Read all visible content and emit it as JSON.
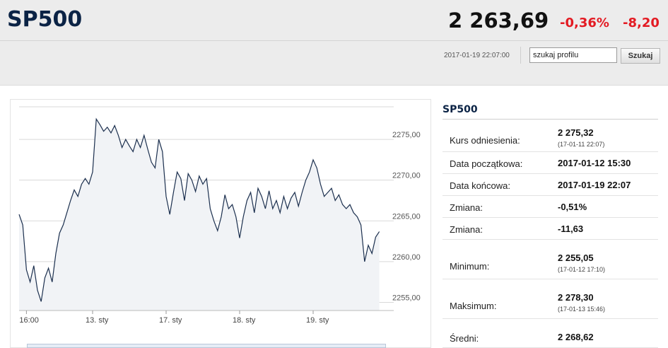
{
  "header": {
    "ticker": "SP500",
    "price": "2 263,69",
    "change_pct": "-0,36%",
    "change_abs": "-8,20",
    "timestamp": "2017-01-19 22:07:00",
    "search_value": "szukaj profilu",
    "search_button": "Szukaj"
  },
  "sidebar": {
    "title": "SP500",
    "stats": [
      {
        "label": "Kurs odniesienia:",
        "value": "2 275,32",
        "sub": "(17-01-11 22:07)"
      },
      {
        "label": "Data początkowa:",
        "value": "2017-01-12 15:30",
        "sub": ""
      },
      {
        "label": "Data końcowa:",
        "value": "2017-01-19 22:07",
        "sub": ""
      },
      {
        "label": "Zmiana:",
        "value": "-0,51%",
        "sub": ""
      },
      {
        "label": "Zmiana:",
        "value": "-11,63",
        "sub": ""
      },
      {
        "label": "Minimum:",
        "value": "2 255,05",
        "sub": "(17-01-12 17:10)"
      },
      {
        "label": "Maksimum:",
        "value": "2 278,30",
        "sub": "(17-01-13 15:46)"
      },
      {
        "label": "Średni:",
        "value": "2 268,62",
        "sub": ""
      }
    ]
  },
  "colors": {
    "title_navy": "#0b2345",
    "negative": "#e31b23",
    "line": "#1b2f4e",
    "area": "#f1f3f6"
  },
  "chart_data": {
    "type": "area",
    "title": "",
    "xlabel": "",
    "ylabel": "",
    "ylim": [
      2254,
      2279
    ],
    "y_ticks": [
      2255,
      2260,
      2265,
      2270,
      2275
    ],
    "y_tick_labels": [
      "2255,00",
      "2260,00",
      "2265,00",
      "2270,00",
      "2275,00"
    ],
    "x_range": [
      0,
      5
    ],
    "x_ticks": [
      0.1,
      1,
      2,
      3,
      4
    ],
    "x_tick_labels": [
      "16:00",
      "13. sty",
      "17. sty",
      "18. sty",
      "19. sty"
    ],
    "grid": true,
    "series": [
      {
        "x": [
          0,
          0.05,
          0.1,
          0.15,
          0.2,
          0.25,
          0.3,
          0.35,
          0.4,
          0.45,
          0.5,
          0.55,
          0.6,
          0.65,
          0.7,
          0.75,
          0.8,
          0.85,
          0.9,
          0.95,
          1.0,
          1.05,
          1.1,
          1.15,
          1.2,
          1.25,
          1.3,
          1.35,
          1.4,
          1.45,
          1.5,
          1.55,
          1.6,
          1.65,
          1.7,
          1.75,
          1.8,
          1.85,
          1.9,
          1.95,
          2.0,
          2.05,
          2.1,
          2.15,
          2.2,
          2.25,
          2.3,
          2.35,
          2.4,
          2.45,
          2.5,
          2.55,
          2.6,
          2.65,
          2.7,
          2.75,
          2.8,
          2.85,
          2.9,
          2.95,
          3.0,
          3.05,
          3.1,
          3.15,
          3.2,
          3.25,
          3.3,
          3.35,
          3.4,
          3.45,
          3.5,
          3.55,
          3.6,
          3.65,
          3.7,
          3.75,
          3.8,
          3.85,
          3.9,
          3.95,
          4.0,
          4.05,
          4.1,
          4.15,
          4.2,
          4.25,
          4.3,
          4.35,
          4.4,
          4.45,
          4.5,
          4.55,
          4.6,
          4.65,
          4.7,
          4.75,
          4.8,
          4.85,
          4.9
        ],
        "y": [
          2265.8,
          2264.5,
          2259.0,
          2257.5,
          2259.5,
          2256.5,
          2255.1,
          2258.0,
          2259.2,
          2257.5,
          2261.0,
          2263.5,
          2264.5,
          2266.0,
          2267.5,
          2268.8,
          2268.0,
          2269.5,
          2270.2,
          2269.5,
          2271.0,
          2277.5,
          2276.8,
          2276.0,
          2276.5,
          2275.8,
          2276.7,
          2275.5,
          2274.0,
          2275.0,
          2274.2,
          2273.5,
          2275.0,
          2274.0,
          2275.5,
          2273.8,
          2272.2,
          2271.5,
          2275.0,
          2273.5,
          2268.0,
          2265.8,
          2268.5,
          2271.0,
          2270.2,
          2267.5,
          2270.8,
          2270.0,
          2268.6,
          2270.5,
          2269.5,
          2270.2,
          2266.5,
          2265.0,
          2263.8,
          2265.5,
          2268.2,
          2266.5,
          2267.0,
          2265.5,
          2262.9,
          2265.5,
          2267.5,
          2268.5,
          2266.0,
          2269.0,
          2268.0,
          2266.5,
          2268.7,
          2266.5,
          2267.5,
          2266.0,
          2268.0,
          2266.5,
          2267.8,
          2268.5,
          2266.8,
          2268.5,
          2270.0,
          2271.0,
          2272.5,
          2271.5,
          2269.5,
          2268.0,
          2268.5,
          2269.0,
          2267.5,
          2268.2,
          2267.0,
          2266.5,
          2267.0,
          2266.0,
          2265.5,
          2264.5,
          2260.0,
          2262.0,
          2261.0,
          2263.0,
          2263.69
        ]
      }
    ]
  }
}
